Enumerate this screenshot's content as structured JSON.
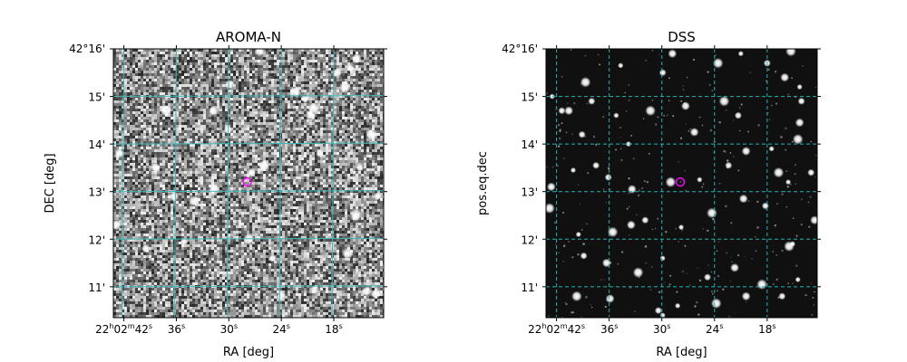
{
  "chart_data": [
    {
      "type": "image",
      "title": "AROMA-N",
      "xlabel": "RA [deg]",
      "ylabel": "DEC [deg]",
      "background": "noisy",
      "grid": true,
      "grid_color": "#3fb8b8",
      "grid_style": "solid",
      "x_ticks": [
        {
          "label": "22h02m42s",
          "main": "22",
          "sup1": "h",
          "mid": "02",
          "sup2": "m",
          "mid2": "42",
          "sup3": "s",
          "ra_sec": 42
        },
        {
          "label": "36s",
          "main": "36",
          "sup1": "s",
          "ra_sec": 36
        },
        {
          "label": "30s",
          "main": "30",
          "sup1": "s",
          "ra_sec": 30
        },
        {
          "label": "24s",
          "main": "24",
          "sup1": "s",
          "ra_sec": 24
        },
        {
          "label": "18s",
          "main": "18",
          "sup1": "s",
          "ra_sec": 18
        }
      ],
      "y_ticks": [
        "42°16'",
        "15'",
        "14'",
        "13'",
        "12'",
        "11'"
      ],
      "y_tick_arcmin": [
        16,
        15,
        14,
        13,
        12,
        11
      ],
      "xlim_ra_sec": [
        43.2,
        12.3
      ],
      "ylim_dec_arcmin": [
        10.35,
        16.0
      ],
      "target": {
        "ra_sec": 27.9,
        "dec_arcmin": 13.2,
        "color": "#ff00ff"
      },
      "stars": [
        [
          44.9,
          15.5
        ],
        [
          42.5,
          13.8
        ],
        [
          42.9,
          12.3
        ],
        [
          39.5,
          11.8
        ],
        [
          38.4,
          13.5
        ],
        [
          37.2,
          14.7
        ],
        [
          35.1,
          11.95
        ],
        [
          31.8,
          14.7
        ],
        [
          31.7,
          13.05
        ],
        [
          30.1,
          14.3
        ],
        [
          29.9,
          15.25
        ],
        [
          27.7,
          12.0
        ],
        [
          27.4,
          13.4
        ],
        [
          26.5,
          15.95
        ],
        [
          26.0,
          13.55
        ],
        [
          25.0,
          11.6
        ],
        [
          24.0,
          10.8
        ],
        [
          22.4,
          15.1
        ],
        [
          21.3,
          14.95
        ],
        [
          20.6,
          14.6
        ],
        [
          20.3,
          14.75
        ],
        [
          19.6,
          13.8
        ],
        [
          17.6,
          15.5
        ],
        [
          16.7,
          15.2
        ],
        [
          16.1,
          15.6
        ],
        [
          15.4,
          15.8
        ],
        [
          15.5,
          12.5
        ],
        [
          15.0,
          13.5
        ],
        [
          14.3,
          10.9
        ],
        [
          13.7,
          14.2
        ],
        [
          13.0,
          12.9
        ],
        [
          13.2,
          10.85
        ],
        [
          16.4,
          11.7
        ],
        [
          20.2,
          10.95
        ],
        [
          36.3,
          12.9
        ],
        [
          33.9,
          12.8
        ]
      ],
      "seed": 7
    },
    {
      "type": "image",
      "title": "DSS",
      "xlabel": "RA [deg]",
      "ylabel": "pos.eq.dec",
      "background": "dark",
      "grid": true,
      "grid_color": "#1fb6b6",
      "grid_style": "dashed",
      "x_ticks": [
        {
          "label": "22h02m42s",
          "main": "22",
          "sup1": "h",
          "mid": "02",
          "sup2": "m",
          "mid2": "42",
          "sup3": "s",
          "ra_sec": 42
        },
        {
          "label": "36s",
          "main": "36",
          "sup1": "s",
          "ra_sec": 36
        },
        {
          "label": "30s",
          "main": "30",
          "sup1": "s",
          "ra_sec": 30
        },
        {
          "label": "24s",
          "main": "24",
          "sup1": "s",
          "ra_sec": 24
        },
        {
          "label": "18s",
          "main": "18",
          "sup1": "s",
          "ra_sec": 18
        }
      ],
      "y_ticks": [
        "42°16'",
        "15'",
        "14'",
        "13'",
        "12'",
        "11'"
      ],
      "y_tick_arcmin": [
        16,
        15,
        14,
        13,
        12,
        11
      ],
      "xlim_ra_sec": [
        43.2,
        12.3
      ],
      "ylim_dec_arcmin": [
        10.35,
        16.0
      ],
      "target": {
        "ra_sec": 27.9,
        "dec_arcmin": 13.2,
        "color": "#ff00ff"
      },
      "stars": [
        [
          42.5,
          15.0
        ],
        [
          41.4,
          14.7
        ],
        [
          40.6,
          14.7
        ],
        [
          38.7,
          15.3
        ],
        [
          34.7,
          15.65
        ],
        [
          29.9,
          15.5
        ],
        [
          28.8,
          15.9
        ],
        [
          23.6,
          15.7
        ],
        [
          21.0,
          15.9
        ],
        [
          18.0,
          15.7
        ],
        [
          16.0,
          15.4
        ],
        [
          15.3,
          15.95
        ],
        [
          14.3,
          15.2
        ],
        [
          14.1,
          14.9
        ],
        [
          14.3,
          14.45
        ],
        [
          14.5,
          14.1
        ],
        [
          17.5,
          13.9
        ],
        [
          21.3,
          14.6
        ],
        [
          27.3,
          14.8
        ],
        [
          31.3,
          14.7
        ],
        [
          35.2,
          14.6
        ],
        [
          39.1,
          14.2
        ],
        [
          42.6,
          13.1
        ],
        [
          42.8,
          12.65
        ],
        [
          40.1,
          13.45
        ],
        [
          36.1,
          13.3
        ],
        [
          33.4,
          13.05
        ],
        [
          29.0,
          13.2
        ],
        [
          25.7,
          13.25
        ],
        [
          22.4,
          13.55
        ],
        [
          20.4,
          13.85
        ],
        [
          16.7,
          13.4
        ],
        [
          15.6,
          13.2
        ],
        [
          13.0,
          13.4
        ],
        [
          12.6,
          12.4
        ],
        [
          15.5,
          11.85
        ],
        [
          15.1,
          11.9
        ],
        [
          18.2,
          12.7
        ],
        [
          20.7,
          12.85
        ],
        [
          24.3,
          12.55
        ],
        [
          27.8,
          12.25
        ],
        [
          31.9,
          12.4
        ],
        [
          33.5,
          12.3
        ],
        [
          35.6,
          12.15
        ],
        [
          39.5,
          12.1
        ],
        [
          38.9,
          11.65
        ],
        [
          36.3,
          11.5
        ],
        [
          32.7,
          11.3
        ],
        [
          29.9,
          11.6
        ],
        [
          24.8,
          11.2
        ],
        [
          21.7,
          11.4
        ],
        [
          18.6,
          11.05
        ],
        [
          14.5,
          11.15
        ],
        [
          16.3,
          10.8
        ],
        [
          20.4,
          10.8
        ],
        [
          23.8,
          10.65
        ],
        [
          28.2,
          10.6
        ],
        [
          30.4,
          10.5
        ],
        [
          35.9,
          10.75
        ],
        [
          39.7,
          10.8
        ],
        [
          29.9,
          10.4
        ],
        [
          38.0,
          14.9
        ],
        [
          26.3,
          14.25
        ],
        [
          22.9,
          14.9
        ],
        [
          33.8,
          14.0
        ],
        [
          37.5,
          13.55
        ]
      ],
      "seed": 11
    }
  ]
}
